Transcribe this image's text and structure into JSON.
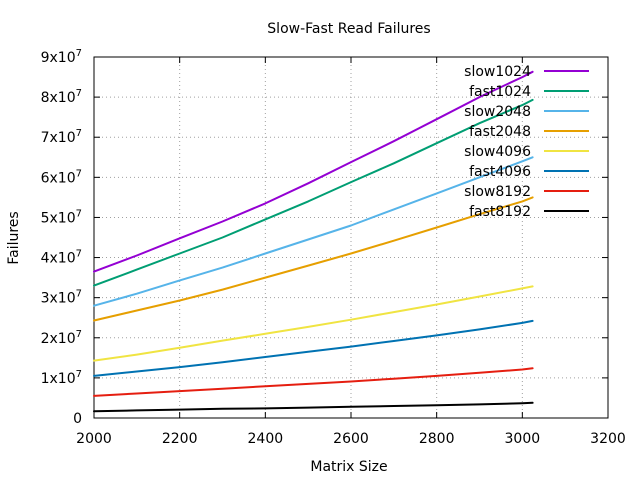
{
  "chart_data": {
    "type": "line",
    "title": "Slow-Fast Read Failures",
    "xlabel": "Matrix Size",
    "ylabel": "Failures",
    "xlim": [
      2000,
      3200
    ],
    "ylim": [
      0,
      90000000
    ],
    "grid": true,
    "legend_position": "top-right",
    "x_ticks": [
      {
        "value": 2000,
        "label": "2000"
      },
      {
        "value": 2200,
        "label": "2200"
      },
      {
        "value": 2400,
        "label": "2400"
      },
      {
        "value": 2600,
        "label": "2600"
      },
      {
        "value": 2800,
        "label": "2800"
      },
      {
        "value": 3000,
        "label": "3000"
      },
      {
        "value": 3200,
        "label": "3200"
      }
    ],
    "y_ticks": [
      {
        "value": 0,
        "mantissa": "0",
        "exponent": ""
      },
      {
        "value": 10000000,
        "mantissa": "1x10",
        "exponent": "7"
      },
      {
        "value": 20000000,
        "mantissa": "2x10",
        "exponent": "7"
      },
      {
        "value": 30000000,
        "mantissa": "3x10",
        "exponent": "7"
      },
      {
        "value": 40000000,
        "mantissa": "4x10",
        "exponent": "7"
      },
      {
        "value": 50000000,
        "mantissa": "5x10",
        "exponent": "7"
      },
      {
        "value": 60000000,
        "mantissa": "6x10",
        "exponent": "7"
      },
      {
        "value": 70000000,
        "mantissa": "7x10",
        "exponent": "7"
      },
      {
        "value": 80000000,
        "mantissa": "8x10",
        "exponent": "7"
      },
      {
        "value": 90000000,
        "mantissa": "9x10",
        "exponent": "7"
      }
    ],
    "x": [
      2000,
      2100,
      2200,
      2300,
      2400,
      2500,
      2600,
      2700,
      2800,
      2900,
      3000,
      3024
    ],
    "series": [
      {
        "name": "slow1024",
        "color": "#9400d3",
        "values": [
          36500000,
          40500000,
          44800000,
          49000000,
          53500000,
          58500000,
          63800000,
          69000000,
          74500000,
          80000000,
          85000000,
          86300000
        ]
      },
      {
        "name": "fast1024",
        "color": "#009e73",
        "values": [
          33000000,
          37000000,
          41000000,
          45000000,
          49500000,
          54000000,
          58800000,
          63500000,
          68500000,
          73500000,
          78000000,
          79300000
        ]
      },
      {
        "name": "slow2048",
        "color": "#56b4e9",
        "values": [
          28000000,
          31000000,
          34300000,
          37500000,
          41000000,
          44500000,
          48000000,
          52000000,
          56000000,
          60000000,
          64000000,
          65000000
        ]
      },
      {
        "name": "fast2048",
        "color": "#e69f00",
        "values": [
          24300000,
          26800000,
          29300000,
          32000000,
          35000000,
          38000000,
          41000000,
          44200000,
          47500000,
          50800000,
          54000000,
          55000000
        ]
      },
      {
        "name": "slow4096",
        "color": "#f0e442",
        "values": [
          14300000,
          15800000,
          17500000,
          19300000,
          21000000,
          22700000,
          24500000,
          26400000,
          28300000,
          30300000,
          32300000,
          32800000
        ]
      },
      {
        "name": "fast4096",
        "color": "#0072b2",
        "values": [
          10500000,
          11600000,
          12700000,
          13900000,
          15200000,
          16500000,
          17800000,
          19200000,
          20600000,
          22100000,
          23700000,
          24200000
        ]
      },
      {
        "name": "slow8192",
        "color": "#e51e10",
        "values": [
          5500000,
          6100000,
          6700000,
          7300000,
          7900000,
          8500000,
          9100000,
          9800000,
          10500000,
          11300000,
          12100000,
          12400000
        ]
      },
      {
        "name": "fast8192",
        "color": "#000000",
        "values": [
          1700000,
          1900000,
          2100000,
          2300000,
          2400000,
          2600000,
          2800000,
          3000000,
          3200000,
          3400000,
          3700000,
          3800000
        ]
      }
    ]
  }
}
